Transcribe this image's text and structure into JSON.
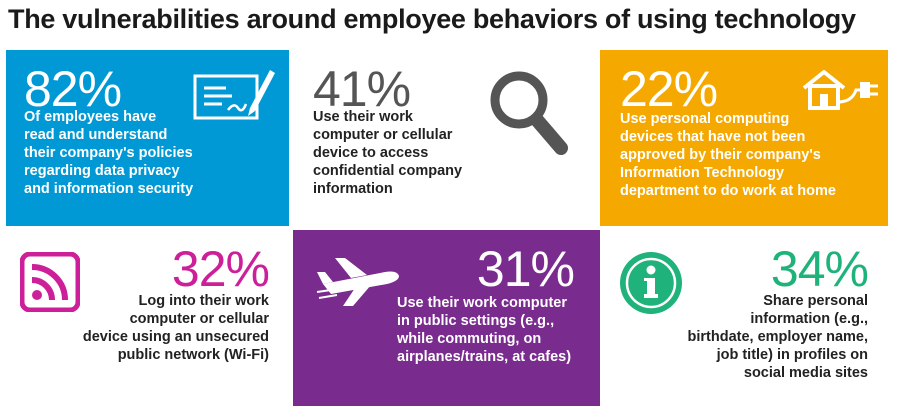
{
  "title": "The vulnerabilities around employee behaviors of using technology",
  "colors": {
    "blue": "#0099d6",
    "orange": "#f5a800",
    "magenta": "#cc1f99",
    "purple": "#7a2b8e",
    "green": "#1fb27a",
    "gray": "#555555"
  },
  "stats": [
    {
      "value": "82%",
      "text": "Of employees have\nread and understand\ntheir company's policies\nregarding data privacy\nand information security",
      "icon": "signed-document-icon"
    },
    {
      "value": "41%",
      "text": "Use their work\ncomputer or cellular\ndevice to access\nconfidential company\ninformation",
      "icon": "magnifying-glass-icon"
    },
    {
      "value": "22%",
      "text": "Use personal computing\ndevices that have not been\napproved by their company's\nInformation Technology\ndepartment to do work at home",
      "icon": "house-plug-icon"
    },
    {
      "value": "32%",
      "text": "Log into their work\ncomputer or cellular\ndevice using an unsecured\npublic network (Wi-Fi)",
      "icon": "wifi-rss-icon"
    },
    {
      "value": "31%",
      "text": "Use their work computer\nin public settings (e.g.,\nwhile commuting, on\nairplanes/trains, at cafes)",
      "icon": "airplane-icon"
    },
    {
      "value": "34%",
      "text": "Share personal\ninformation (e.g.,\nbirthdate, employer name,\njob title) in profiles on\nsocial media sites",
      "icon": "info-circle-icon"
    }
  ]
}
